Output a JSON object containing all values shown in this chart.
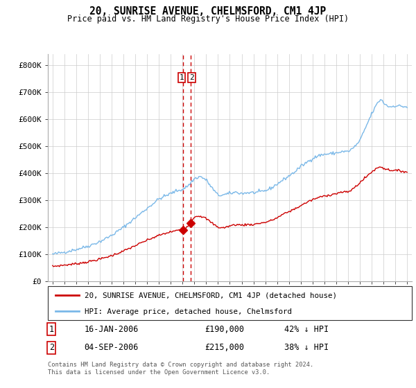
{
  "title": "20, SUNRISE AVENUE, CHELMSFORD, CM1 4JP",
  "subtitle": "Price paid vs. HM Land Registry's House Price Index (HPI)",
  "ylim": [
    0,
    840000
  ],
  "yticks": [
    0,
    100000,
    200000,
    300000,
    400000,
    500000,
    600000,
    700000,
    800000
  ],
  "ytick_labels": [
    "£0",
    "£100K",
    "£200K",
    "£300K",
    "£400K",
    "£500K",
    "£600K",
    "£700K",
    "£800K"
  ],
  "hpi_color": "#7ab8e8",
  "price_color": "#cc0000",
  "dashed_line_color": "#cc0000",
  "background_color": "#ffffff",
  "grid_color": "#cccccc",
  "transaction1_date": "16-JAN-2006",
  "transaction1_price": 190000,
  "transaction1_hpi": "42% ↓ HPI",
  "transaction2_date": "04-SEP-2006",
  "transaction2_price": 215000,
  "transaction2_hpi": "38% ↓ HPI",
  "legend_label_price": "20, SUNRISE AVENUE, CHELMSFORD, CM1 4JP (detached house)",
  "legend_label_hpi": "HPI: Average price, detached house, Chelmsford",
  "footnote": "Contains HM Land Registry data © Crown copyright and database right 2024.\nThis data is licensed under the Open Government Licence v3.0.",
  "marker1_x": 2006.04,
  "marker1_y": 190000,
  "marker2_x": 2006.67,
  "marker2_y": 215000,
  "xlim_left": 1994.6,
  "xlim_right": 2025.4
}
